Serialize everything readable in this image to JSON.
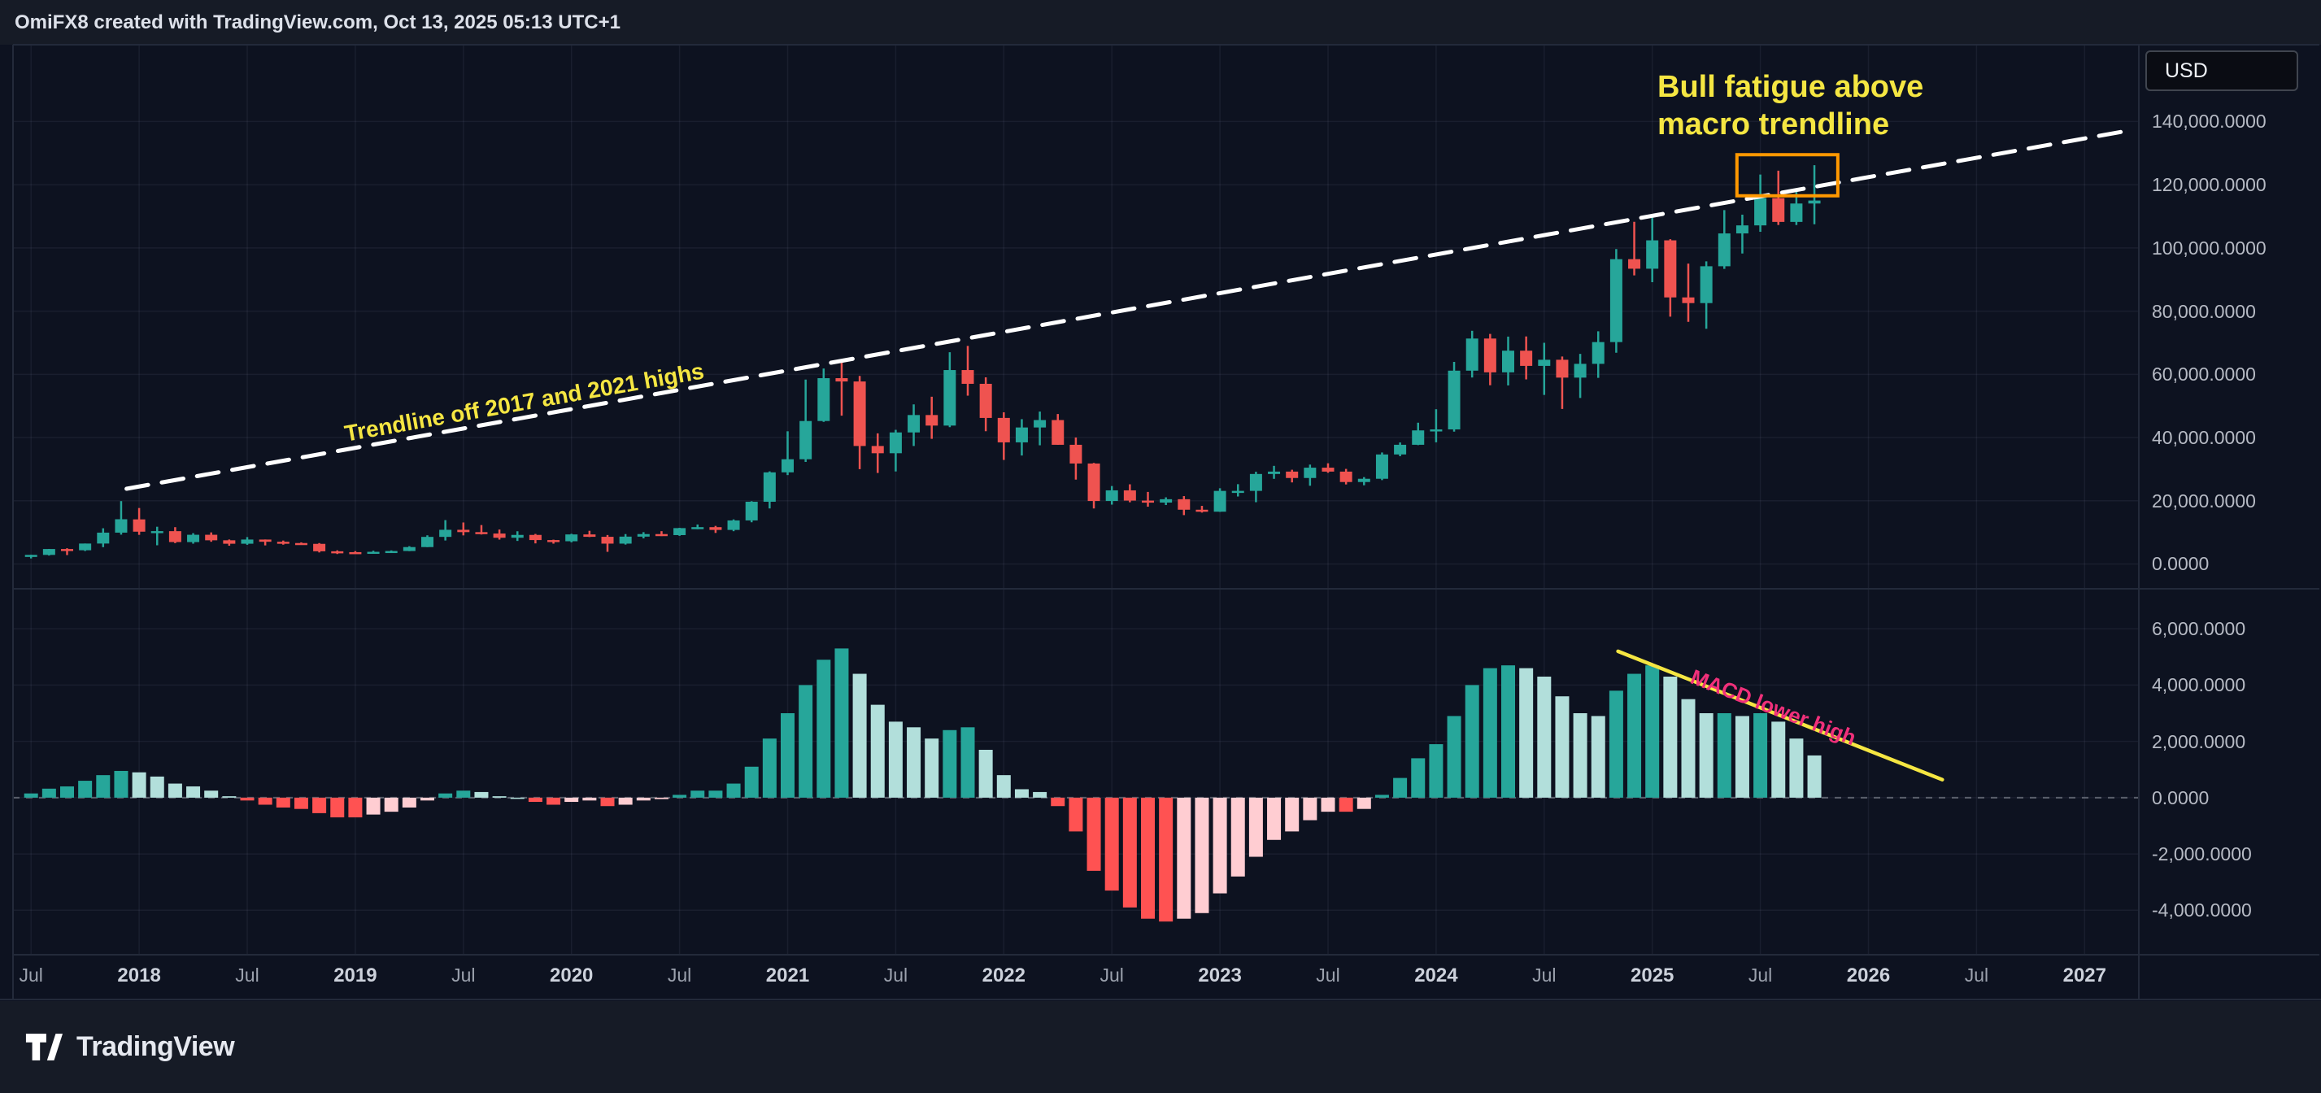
{
  "header": {
    "title": "OmiFX8 created with TradingView.com, Oct 13, 2025 05:13 UTC+1"
  },
  "price_axis": {
    "currency_label": "USD",
    "labels": [
      {
        "text": "140,000.0000",
        "value": 140000
      },
      {
        "text": "120,000.0000",
        "value": 120000
      },
      {
        "text": "100,000.0000",
        "value": 100000
      },
      {
        "text": "80,000.0000",
        "value": 80000
      },
      {
        "text": "60,000.0000",
        "value": 60000
      },
      {
        "text": "40,000.0000",
        "value": 40000
      },
      {
        "text": "20,000.0000",
        "value": 20000
      },
      {
        "text": "0.0000",
        "value": 0
      }
    ]
  },
  "macd_axis": {
    "labels": [
      {
        "text": "6,000.0000",
        "value": 6000
      },
      {
        "text": "4,000.0000",
        "value": 4000
      },
      {
        "text": "2,000.0000",
        "value": 2000
      },
      {
        "text": "0.0000",
        "value": 0
      },
      {
        "text": "-2,000.0000",
        "value": -2000
      },
      {
        "text": "-4,000.0000",
        "value": -4000
      }
    ]
  },
  "time_axis": {
    "labels": [
      {
        "text": "Jul",
        "index": 0,
        "type": "month"
      },
      {
        "text": "2018",
        "index": 6,
        "type": "year"
      },
      {
        "text": "Jul",
        "index": 12,
        "type": "month"
      },
      {
        "text": "2019",
        "index": 18,
        "type": "year"
      },
      {
        "text": "Jul",
        "index": 24,
        "type": "month"
      },
      {
        "text": "2020",
        "index": 30,
        "type": "year"
      },
      {
        "text": "Jul",
        "index": 36,
        "type": "month"
      },
      {
        "text": "2021",
        "index": 42,
        "type": "year"
      },
      {
        "text": "Jul",
        "index": 48,
        "type": "month"
      },
      {
        "text": "2022",
        "index": 54,
        "type": "year"
      },
      {
        "text": "Jul",
        "index": 60,
        "type": "month"
      },
      {
        "text": "2023",
        "index": 66,
        "type": "year"
      },
      {
        "text": "Jul",
        "index": 72,
        "type": "month"
      },
      {
        "text": "2024",
        "index": 78,
        "type": "year"
      },
      {
        "text": "Jul",
        "index": 84,
        "type": "month"
      },
      {
        "text": "2025",
        "index": 90,
        "type": "year"
      },
      {
        "text": "Jul",
        "index": 96,
        "type": "month"
      },
      {
        "text": "2026",
        "index": 102,
        "type": "year"
      },
      {
        "text": "Jul",
        "index": 108,
        "type": "month"
      },
      {
        "text": "2027",
        "index": 114,
        "type": "year"
      }
    ]
  },
  "annotations": {
    "trendline_label": "Trendline off 2017 and 2021 highs",
    "bull_fatigue_line1": "Bull fatigue above",
    "bull_fatigue_line2": "macro trendline",
    "macd_label": "MACD lower high"
  },
  "footer": {
    "brand": "TradingView"
  },
  "chart_data": {
    "type": "candlestick",
    "interval": "1M",
    "quote_currency": "USD",
    "start_month": "2017-07",
    "price_ylim": [
      -7850,
      164300
    ],
    "macd_ylim": [
      -5580,
      7420
    ],
    "colors": {
      "up": "#26a69a",
      "down": "#ef5350",
      "hist_grow_above": "#26a69a",
      "hist_fall_above": "#b2dfdb",
      "hist_fall_below": "#ff5252",
      "hist_grow_below": "#ffcdd2",
      "trendline": "#ffffff",
      "annotation_yellow": "#f5e642",
      "annotation_pink": "#f0307a",
      "highlight_orange": "#ff9800"
    },
    "candles": [
      [
        2480,
        2916,
        1758,
        2875
      ],
      [
        2871,
        4765,
        2676,
        4735
      ],
      [
        4735,
        4975,
        2817,
        4338
      ],
      [
        4341,
        6470,
        4110,
        6468
      ],
      [
        6468,
        11300,
        5325,
        9916
      ],
      [
        9916,
        19891,
        9280,
        14156
      ],
      [
        14112,
        17712,
        9222,
        10221
      ],
      [
        10237,
        11786,
        5920,
        10397
      ],
      [
        10385,
        11650,
        6600,
        6938
      ],
      [
        6926,
        9745,
        6425,
        9244
      ],
      [
        9246,
        9990,
        7032,
        7494
      ],
      [
        7500,
        7748,
        5780,
        6404
      ],
      [
        6411,
        8507,
        6070,
        7735
      ],
      [
        7730,
        7760,
        5880,
        7033
      ],
      [
        7033,
        7410,
        6111,
        6626
      ],
      [
        6626,
        6830,
        6205,
        6371
      ],
      [
        6369,
        6615,
        3652,
        4017
      ],
      [
        4017,
        4312,
        3156,
        3742
      ],
      [
        3746,
        4069,
        3349,
        3457
      ],
      [
        3460,
        4190,
        3373,
        3854
      ],
      [
        3853,
        4290,
        3672,
        4105
      ],
      [
        4105,
        5627,
        4053,
        5350
      ],
      [
        5350,
        9074,
        5334,
        8574
      ],
      [
        8574,
        13880,
        7432,
        10817
      ],
      [
        10818,
        13129,
        9049,
        10085
      ],
      [
        10080,
        12316,
        9321,
        9630
      ],
      [
        9630,
        10898,
        7714,
        8293
      ],
      [
        8299,
        10350,
        7293,
        9199
      ],
      [
        9199,
        9505,
        6515,
        7569
      ],
      [
        7569,
        7690,
        6435,
        7193
      ],
      [
        7194,
        9553,
        6853,
        9350
      ],
      [
        9351,
        10500,
        8521,
        8599
      ],
      [
        8599,
        9170,
        3850,
        6438
      ],
      [
        6439,
        9460,
        6140,
        8658
      ],
      [
        8658,
        10067,
        8101,
        9461
      ],
      [
        9461,
        10380,
        8830,
        9137
      ],
      [
        9138,
        11444,
        8900,
        11351
      ],
      [
        11351,
        12486,
        10995,
        11655
      ],
      [
        11655,
        12050,
        9825,
        10776
      ],
      [
        10776,
        14100,
        10374,
        13781
      ],
      [
        13781,
        19863,
        13195,
        19695
      ],
      [
        19696,
        29300,
        17572,
        28994
      ],
      [
        28995,
        41986,
        28130,
        33141
      ],
      [
        33141,
        58352,
        32296,
        45240
      ],
      [
        45240,
        61844,
        44963,
        58789
      ],
      [
        58789,
        64854,
        46930,
        57750
      ],
      [
        57750,
        59500,
        30000,
        37333
      ],
      [
        37334,
        41330,
        28805,
        35041
      ],
      [
        35041,
        42448,
        29278,
        41626
      ],
      [
        41626,
        50500,
        37332,
        47130
      ],
      [
        47130,
        52920,
        39600,
        43791
      ],
      [
        43791,
        66999,
        43283,
        61359
      ],
      [
        61359,
        69000,
        53256,
        57006
      ],
      [
        57006,
        59041,
        42000,
        46207
      ],
      [
        46217,
        47990,
        32917,
        38483
      ],
      [
        38483,
        45821,
        34322,
        43193
      ],
      [
        43194,
        48234,
        37555,
        45539
      ],
      [
        45539,
        47448,
        37702,
        37714
      ],
      [
        37714,
        40023,
        26700,
        31792
      ],
      [
        31793,
        31982,
        17567,
        19926
      ],
      [
        19927,
        24668,
        18780,
        23297
      ],
      [
        23297,
        25211,
        19526,
        20050
      ],
      [
        20050,
        22799,
        18125,
        19432
      ],
      [
        19432,
        21085,
        18650,
        20490
      ],
      [
        20490,
        21480,
        15460,
        17168
      ],
      [
        17168,
        18385,
        16263,
        16547
      ],
      [
        16547,
        23960,
        16499,
        23125
      ],
      [
        23125,
        25250,
        21351,
        23130
      ],
      [
        23130,
        29184,
        19549,
        28478
      ],
      [
        28478,
        31050,
        26942,
        29233
      ],
      [
        29233,
        29820,
        25810,
        27210
      ],
      [
        27210,
        31443,
        24753,
        30472
      ],
      [
        30472,
        31862,
        28855,
        29230
      ],
      [
        29230,
        30088,
        25166,
        25932
      ],
      [
        25932,
        27483,
        24901,
        26962
      ],
      [
        26962,
        35280,
        26538,
        34656
      ],
      [
        34657,
        38450,
        34100,
        37718
      ],
      [
        37718,
        44700,
        37615,
        42265
      ],
      [
        42280,
        48969,
        38501,
        42580
      ],
      [
        42580,
        63933,
        41884,
        61168
      ],
      [
        61169,
        73777,
        59005,
        71333
      ],
      [
        71333,
        72797,
        56552,
        60637
      ],
      [
        60637,
        71946,
        56500,
        67491
      ],
      [
        67491,
        71997,
        58402,
        62678
      ],
      [
        62678,
        69987,
        53485,
        64619
      ],
      [
        64619,
        65659,
        49050,
        58969
      ],
      [
        58969,
        66480,
        52530,
        63329
      ],
      [
        63329,
        73620,
        58895,
        70215
      ],
      [
        70215,
        99655,
        66835,
        96449
      ],
      [
        96449,
        108268,
        91317,
        93429
      ],
      [
        93429,
        109588,
        89164,
        102405
      ],
      [
        102405,
        102781,
        78258,
        84349
      ],
      [
        84349,
        95043,
        76606,
        82548
      ],
      [
        82548,
        95768,
        74434,
        94207
      ],
      [
        94207,
        111980,
        93361,
        104598
      ],
      [
        104598,
        110530,
        98240,
        107135
      ],
      [
        107135,
        123218,
        105111,
        115758
      ],
      [
        115758,
        124457,
        107270,
        108236
      ],
      [
        108236,
        117900,
        107255,
        114056
      ],
      [
        114056,
        126199,
        107500,
        115000
      ]
    ],
    "macd_hist": [
      150,
      320,
      400,
      600,
      800,
      950,
      900,
      750,
      500,
      400,
      250,
      50,
      -100,
      -250,
      -350,
      -400,
      -550,
      -700,
      -700,
      -600,
      -500,
      -350,
      -100,
      150,
      250,
      200,
      50,
      0,
      -150,
      -250,
      -150,
      -100,
      -300,
      -250,
      -100,
      -50,
      100,
      250,
      250,
      500,
      1100,
      2100,
      3000,
      4000,
      4900,
      5300,
      4400,
      3300,
      2700,
      2500,
      2100,
      2400,
      2500,
      1700,
      800,
      300,
      200,
      -300,
      -1200,
      -2600,
      -3300,
      -3900,
      -4300,
      -4400,
      -4300,
      -4100,
      -3400,
      -2800,
      -2100,
      -1500,
      -1200,
      -800,
      -500,
      -500,
      -400,
      100,
      700,
      1400,
      1900,
      2900,
      4000,
      4600,
      4700,
      4600,
      4300,
      3600,
      3000,
      2900,
      3800,
      4400,
      4700,
      4300,
      3500,
      3000,
      3000,
      2900,
      3000,
      2700,
      2100,
      1500
    ],
    "trendline": {
      "x1_index": 5.3,
      "price1": 23800,
      "x2_index": 116.6,
      "price2": 137300
    },
    "macd_trendline": {
      "x1_index": 88.1,
      "value1": 5200,
      "x2_index": 106.1,
      "value2": 640
    },
    "highlight_box": {
      "start_index": 94.7,
      "end_index": 100.3,
      "top_price": 129500,
      "bottom_price": 116500
    }
  }
}
